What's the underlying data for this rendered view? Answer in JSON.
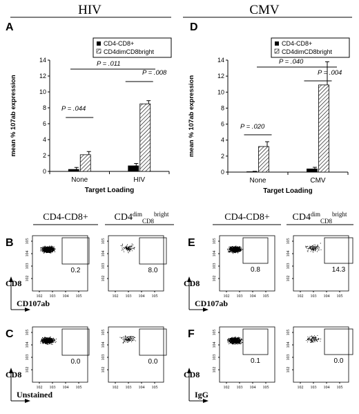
{
  "headers": {
    "left": "HIV",
    "right": "CMV"
  },
  "panel_letters": [
    "A",
    "D",
    "B",
    "E",
    "C",
    "F"
  ],
  "legend": {
    "items": [
      "CD4-CD8+",
      "CD4dimCD8bright"
    ]
  },
  "bar_axes": {
    "ylabel": "mean % 107ab expression",
    "xlabel": "Target Loading",
    "yticks": [
      "0",
      "2",
      "4",
      "6",
      "8",
      "10",
      "12",
      "14"
    ]
  },
  "chart_data": [
    {
      "type": "bar",
      "panel": "A",
      "categories": [
        "None",
        "HIV"
      ],
      "series": [
        {
          "name": "CD4-CD8+",
          "values": [
            0.25,
            0.7
          ],
          "errors": [
            0.25,
            0.3
          ]
        },
        {
          "name": "CD4dimCD8bright",
          "values": [
            2.1,
            8.5
          ],
          "errors": [
            0.4,
            0.4
          ]
        }
      ],
      "ylim": [
        0,
        14
      ],
      "annotations": [
        "P = .044",
        "P = .008",
        "P = .011"
      ]
    },
    {
      "type": "bar",
      "panel": "D",
      "categories": [
        "None",
        "CMV"
      ],
      "series": [
        {
          "name": "CD4-CD8+",
          "values": [
            0.05,
            0.4
          ],
          "errors": [
            0.05,
            0.2
          ]
        },
        {
          "name": "CD4dimCD8bright",
          "values": [
            3.2,
            10.9
          ],
          "errors": [
            0.6,
            2.9
          ]
        }
      ],
      "ylim": [
        0,
        14
      ],
      "annotations": [
        "P = .020",
        "P = .004",
        "P = .040"
      ]
    }
  ],
  "flow": {
    "col_headers": [
      "CD4-CD8+",
      "CD4",
      "dim",
      "CD8",
      "bright"
    ],
    "gate_values": {
      "B1": "0.2",
      "B2": "8.0",
      "C1": "0.0",
      "C2": "0.0",
      "E1": "0.8",
      "E2": "14.3",
      "F1": "0.1",
      "F2": "0.0"
    },
    "y_axis_label": "CD8",
    "x_axis_labels": {
      "B": "CD107ab",
      "C": "Unstained",
      "E": "CD107ab",
      "F": "IgG"
    },
    "ytick_labels": [
      "10",
      "5",
      "4",
      "3",
      "2"
    ],
    "xtick_labels": [
      "10",
      "2",
      "3",
      "4",
      "5"
    ]
  }
}
